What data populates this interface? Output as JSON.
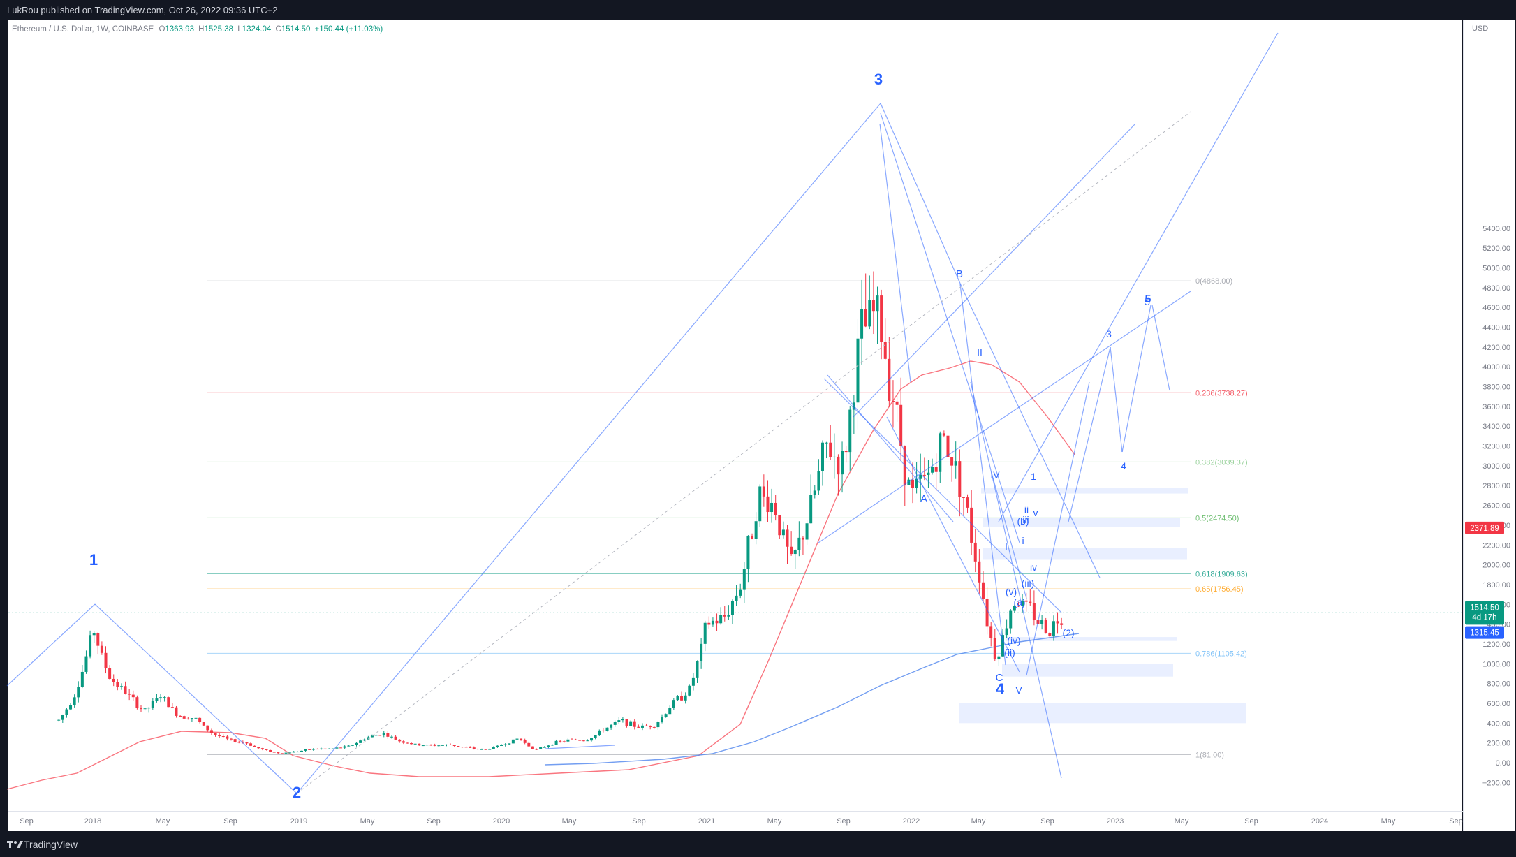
{
  "header": {
    "published_text": "LukRou published on TradingView.com, Oct 26, 2022 09:36 UTC+2"
  },
  "legend": {
    "symbol": "Ethereum / U.S. Dollar, 1W, COINBASE",
    "open_label": "O",
    "open": "1363.93",
    "high_label": "H",
    "high": "1525.38",
    "low_label": "L",
    "low": "1324.04",
    "close_label": "C",
    "close": "1514.50",
    "change": "+150.44 (+11.03%)"
  },
  "price_axis": {
    "currency": "USD",
    "ticks": [
      "5400.00",
      "5200.00",
      "5000.00",
      "4800.00",
      "4600.00",
      "4400.00",
      "4200.00",
      "4000.00",
      "3800.00",
      "3600.00",
      "3400.00",
      "3200.00",
      "3000.00",
      "2800.00",
      "2600.00",
      "2400.00",
      "2200.00",
      "2000.00",
      "1800.00",
      "1600.00",
      "1400.00",
      "1200.00",
      "1000.00",
      "800.00",
      "600.00",
      "400.00",
      "200.00",
      "0.00",
      "−200.00"
    ],
    "badges": {
      "ma_red": "2371.89",
      "last_price": "1514.50",
      "countdown": "4d 17h",
      "ma_blue": "1315.45"
    }
  },
  "time_axis": [
    "Sep",
    "2018",
    "May",
    "Sep",
    "2019",
    "May",
    "Sep",
    "2020",
    "May",
    "Sep",
    "2021",
    "May",
    "Sep",
    "2022",
    "May",
    "Sep",
    "2023",
    "May",
    "Sep",
    "2024",
    "May",
    "Sep"
  ],
  "fib_levels": [
    {
      "label": "0(4868.00)",
      "price": 4868,
      "color": "#9598a1"
    },
    {
      "label": "0.236(3738.27)",
      "price": 3738.27,
      "color": "#f23645"
    },
    {
      "label": "0.382(3039.37)",
      "price": 3039.37,
      "color": "#81c784"
    },
    {
      "label": "0.5(2474.50)",
      "price": 2474.5,
      "color": "#4caf50"
    },
    {
      "label": "0.618(1909.63)",
      "price": 1909.63,
      "color": "#089981"
    },
    {
      "label": "0.65(1756.45)",
      "price": 1756.45,
      "color": "#ff9800"
    },
    {
      "label": "0.786(1105.42)",
      "price": 1105.42,
      "color": "#64b5f6"
    },
    {
      "label": "1(81.00)",
      "price": 81,
      "color": "#9598a1"
    }
  ],
  "wave_labels": {
    "major": [
      "1",
      "2",
      "3",
      "4",
      "5"
    ],
    "corrective": [
      "A",
      "B",
      "C"
    ],
    "minor": [
      "I",
      "II",
      "IV",
      "V",
      "(b)",
      "(a)",
      "(2)",
      "(ii)",
      "(iv)",
      "(v)",
      "(iii)",
      "iii",
      "ii",
      "i",
      "iv",
      "v",
      "3",
      "4",
      "5",
      "1"
    ]
  },
  "chart_data": {
    "type": "candlestick",
    "symbol": "Ethereum / U.S. Dollar",
    "interval": "1W",
    "exchange": "COINBASE",
    "ylim": [
      -200,
      5500
    ],
    "series": [
      {
        "name": "",
        "points": [
          [
            "2017-11",
            430
          ],
          [
            "2017-12",
            720
          ],
          [
            "2018-01",
            1380
          ],
          [
            "2018-02",
            860
          ],
          [
            "2018-03",
            700
          ],
          [
            "2018-04",
            520
          ],
          [
            "2018-05",
            680
          ],
          [
            "2018-06",
            480
          ],
          [
            "2018-07",
            450
          ],
          [
            "2018-08",
            300
          ],
          [
            "2018-09",
            230
          ],
          [
            "2018-10",
            200
          ],
          [
            "2018-11",
            130
          ],
          [
            "2018-12",
            95
          ],
          [
            "2019-01",
            115
          ],
          [
            "2019-02",
            140
          ],
          [
            "2019-03",
            140
          ],
          [
            "2019-04",
            165
          ],
          [
            "2019-05",
            250
          ],
          [
            "2019-06",
            300
          ],
          [
            "2019-07",
            220
          ],
          [
            "2019-08",
            180
          ],
          [
            "2019-09",
            175
          ],
          [
            "2019-10",
            180
          ],
          [
            "2019-11",
            150
          ],
          [
            "2019-12",
            130
          ],
          [
            "2020-01",
            180
          ],
          [
            "2020-02",
            250
          ],
          [
            "2020-03",
            130
          ],
          [
            "2020-04",
            200
          ],
          [
            "2020-05",
            230
          ],
          [
            "2020-06",
            230
          ],
          [
            "2020-07",
            340
          ],
          [
            "2020-08",
            430
          ],
          [
            "2020-09",
            360
          ],
          [
            "2020-10",
            385
          ],
          [
            "2020-11",
            600
          ],
          [
            "2020-12",
            740
          ],
          [
            "2021-01",
            1400
          ],
          [
            "2021-02",
            1450
          ],
          [
            "2021-03",
            1800
          ],
          [
            "2021-04",
            2700
          ],
          [
            "2021-05",
            2600
          ],
          [
            "2021-06",
            2000
          ],
          [
            "2021-07",
            2500
          ],
          [
            "2021-08",
            3200
          ],
          [
            "2021-09",
            3000
          ],
          [
            "2021-10",
            4300
          ],
          [
            "2021-11",
            4600
          ],
          [
            "2021-12",
            3700
          ],
          [
            "2022-01",
            2700
          ],
          [
            "2022-02",
            2900
          ],
          [
            "2022-03",
            3300
          ],
          [
            "2022-04",
            2800
          ],
          [
            "2022-05",
            1950
          ],
          [
            "2022-06",
            1050
          ],
          [
            "2022-07",
            1650
          ],
          [
            "2022-08",
            1550
          ],
          [
            "2022-09",
            1330
          ],
          [
            "2022-10",
            1514.5
          ]
        ]
      }
    ],
    "moving_averages": [
      "red",
      "blue"
    ]
  }
}
